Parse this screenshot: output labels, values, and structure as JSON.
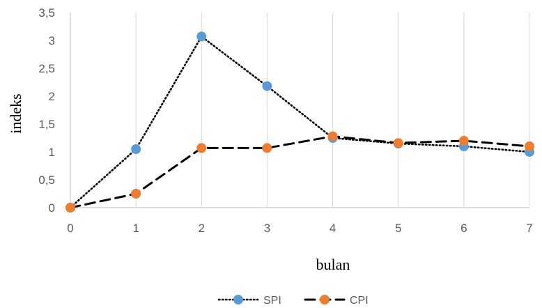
{
  "chart_data": {
    "type": "line",
    "x": [
      0,
      1,
      2,
      3,
      4,
      5,
      6,
      7
    ],
    "xlabel": "bulan",
    "ylabel": "indeks",
    "xlim": [
      0,
      7
    ],
    "ylim": [
      0,
      3.5
    ],
    "x_ticks": [
      "0",
      "1",
      "2",
      "3",
      "4",
      "5",
      "6",
      "7"
    ],
    "y_ticks": [
      "0",
      "0,5",
      "1",
      "1,5",
      "2",
      "2,5",
      "3",
      "3,5"
    ],
    "grid": "vertical",
    "legend_position": "bottom",
    "series": [
      {
        "name": "SPI",
        "values": [
          0,
          1.05,
          3.07,
          2.18,
          1.25,
          1.15,
          1.1,
          1.0
        ],
        "marker_color": "#5b9bd5",
        "line_color": "#000000",
        "line_style": "dotted"
      },
      {
        "name": "CPI",
        "values": [
          0,
          0.25,
          1.07,
          1.07,
          1.28,
          1.16,
          1.2,
          1.1
        ],
        "marker_color": "#ed7d31",
        "line_color": "#000000",
        "line_style": "dashed"
      }
    ]
  }
}
